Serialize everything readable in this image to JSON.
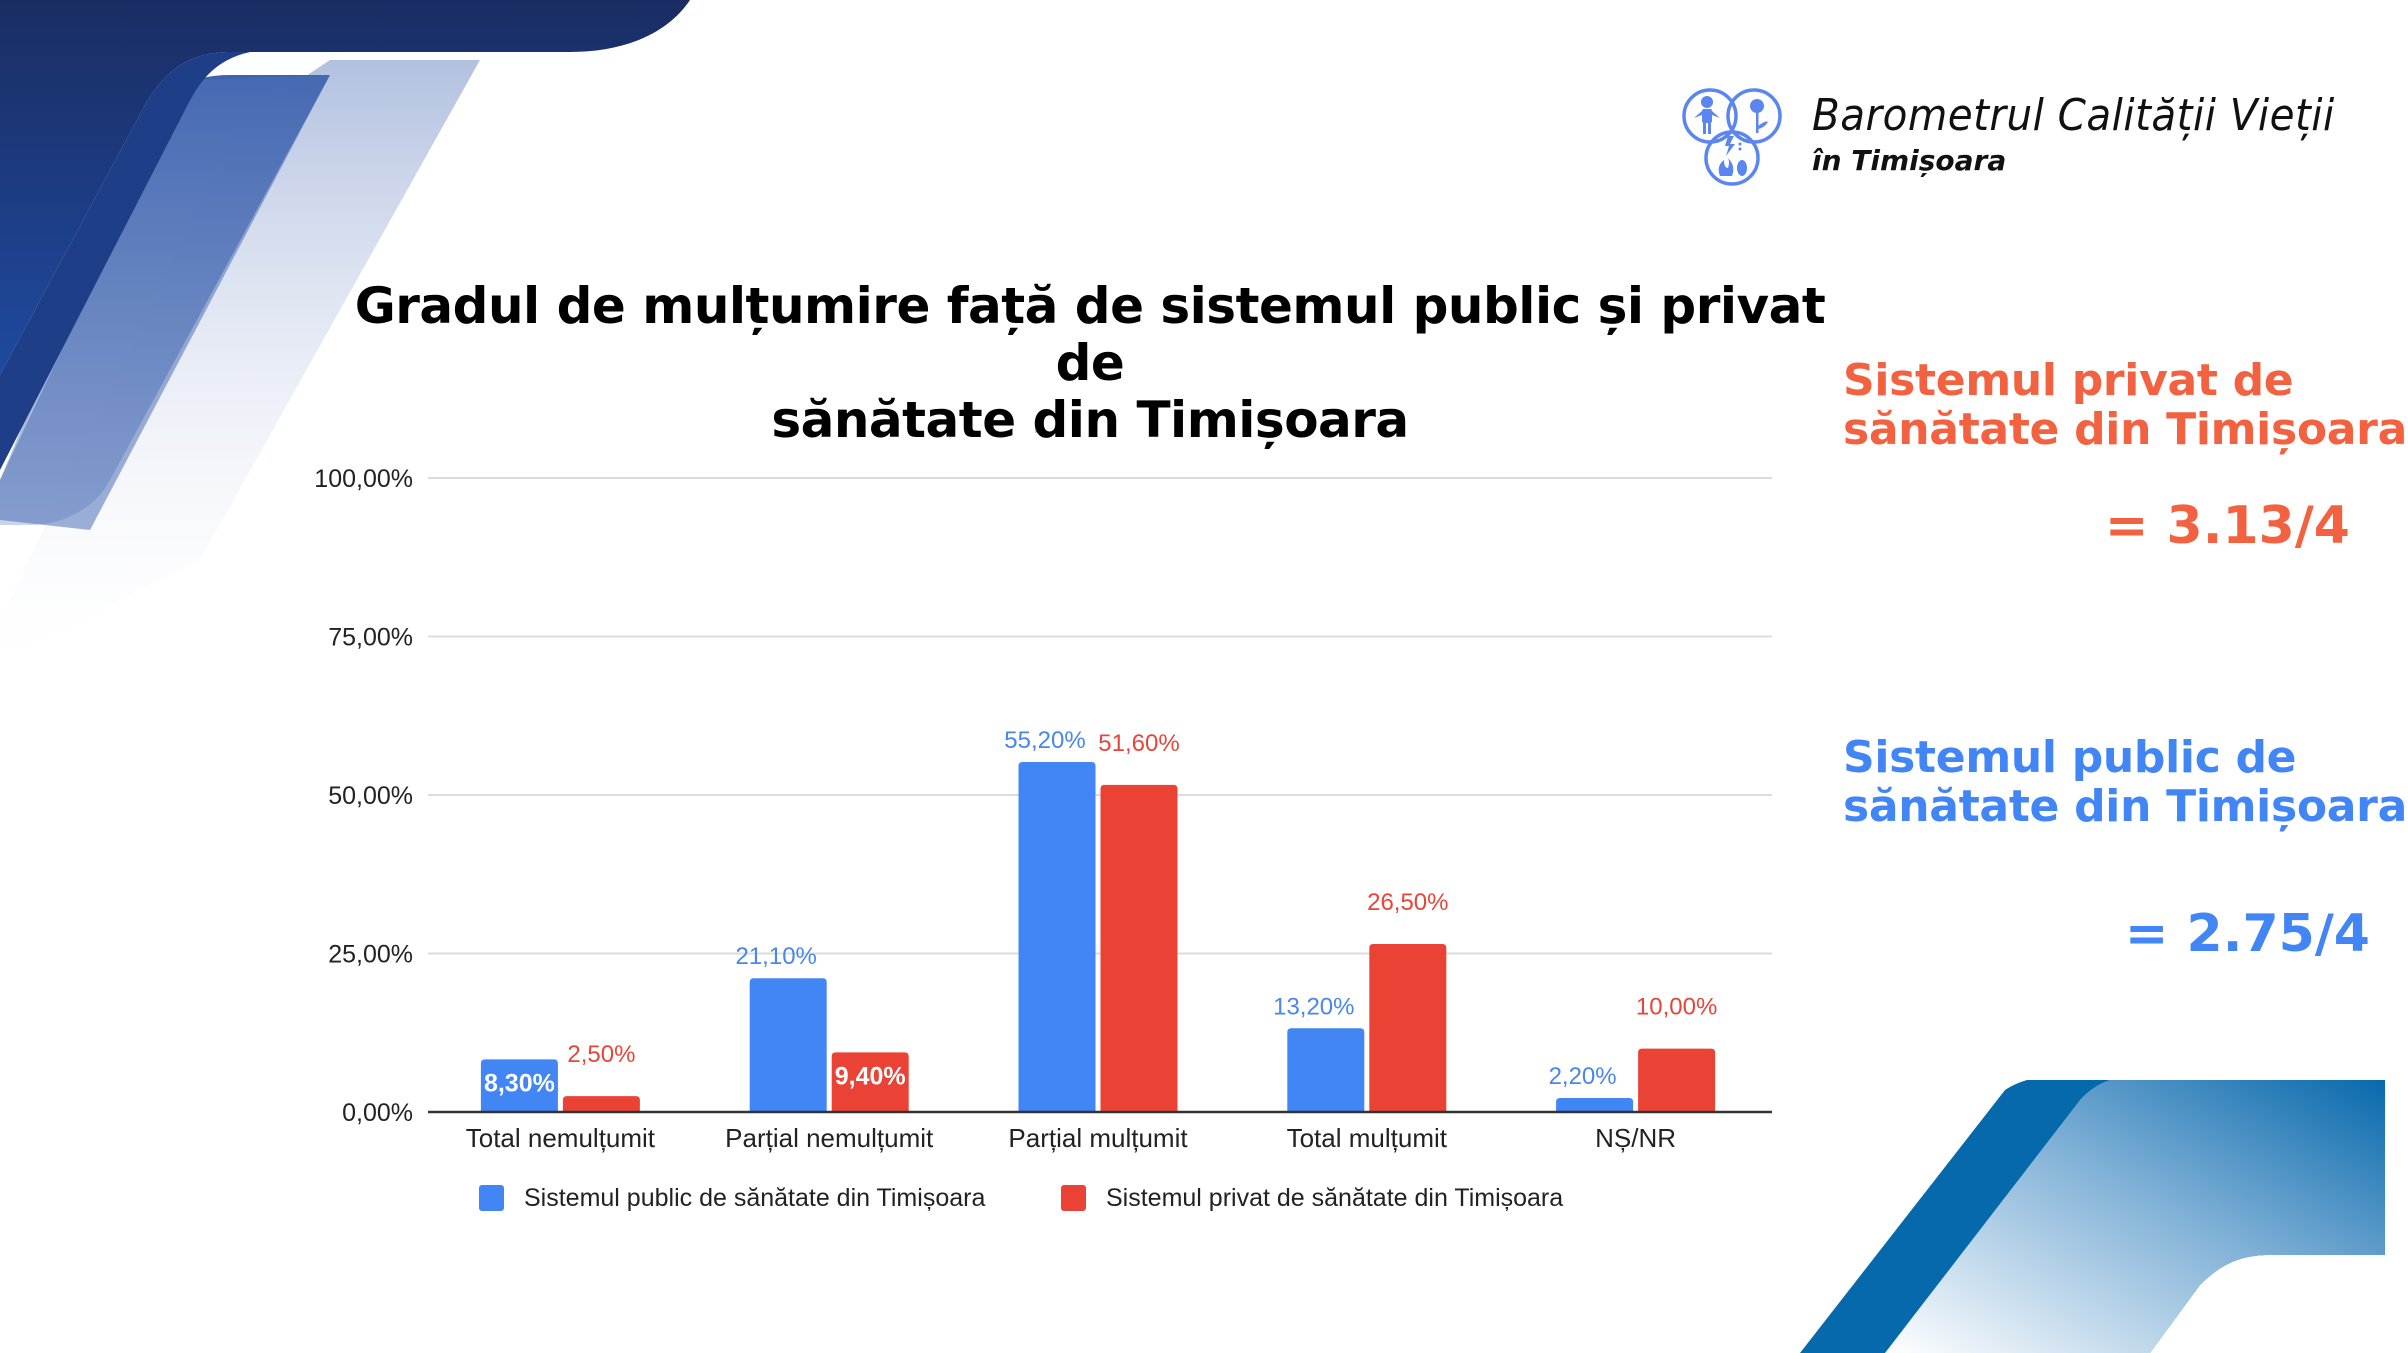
{
  "branding": {
    "logo_line1": "Barometrul Calității Vieții",
    "logo_line2": "în Timișoara",
    "logo_icon": "venn-circles-person-flower-elements-icon",
    "accent_color": "#5b86f0"
  },
  "side_panel": {
    "private": {
      "heading_line1": "Sistemul privat de",
      "heading_line2": "sănătate din Timișoara",
      "score": "= 3.13/4",
      "color": "#f26241"
    },
    "public": {
      "heading_line1": "Sistemul public de",
      "heading_line2": "sănătate din Timișoara",
      "score": "= 2.75/4",
      "color": "#4285f4"
    }
  },
  "stray_mark": ",",
  "chart_data": {
    "type": "bar",
    "title_line1": "Gradul de mulțumire față de sistemul public și privat de",
    "title_line2": "sănătate din Timișoara",
    "xlabel": "",
    "ylabel": "",
    "ylim": [
      0,
      100
    ],
    "y_ticks": [
      0,
      25,
      50,
      75,
      100
    ],
    "y_tick_labels": [
      "0,00%",
      "25,00%",
      "50,00%",
      "75,00%",
      "100,00%"
    ],
    "grid": true,
    "legend_position": "bottom",
    "categories": [
      "Total nemulțumit",
      "Parțial nemulțumit",
      "Parțial mulțumit",
      "Total mulțumit",
      "NȘ/NR"
    ],
    "series": [
      {
        "name": "Sistemul public de sănătate din Timișoara",
        "color": "#4285f4",
        "values": [
          8.3,
          21.1,
          55.2,
          13.2,
          2.2
        ],
        "labels": [
          "8,30%",
          "21,10%",
          "55,20%",
          "13,20%",
          "2,20%"
        ]
      },
      {
        "name": "Sistemul privat de sănătate din Timișoara",
        "color": "#ea4335",
        "values": [
          2.5,
          9.4,
          51.6,
          26.5,
          10.0
        ],
        "labels": [
          "2,50%",
          "9,40%",
          "51,60%",
          "26,50%",
          "10,00%"
        ]
      }
    ]
  }
}
